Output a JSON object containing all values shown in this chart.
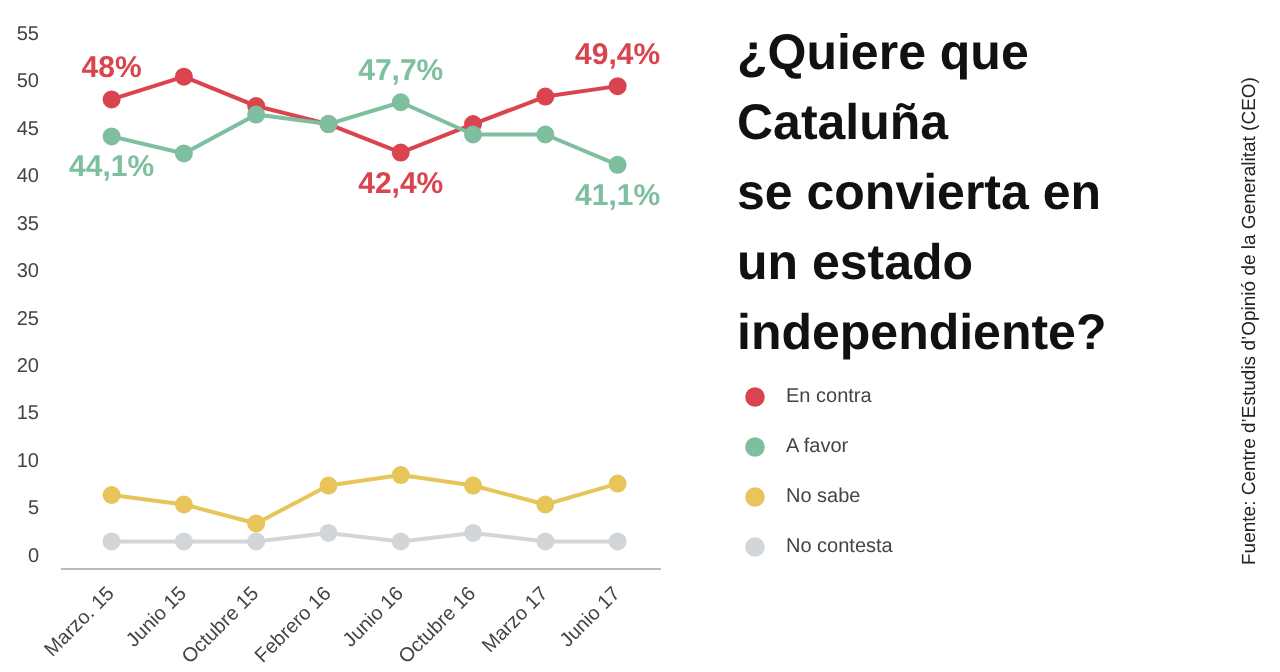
{
  "chart_data": {
    "type": "line",
    "title": "¿Quiere que\nCataluña\nse convierta en\nun estado\nindependiente?",
    "categories": [
      "Marzo. 15",
      "Junio 15",
      "Octubre 15",
      "Febrero 16",
      "Junio 16",
      "Octubre 16",
      "Marzo 17",
      "Junio 17"
    ],
    "series": [
      {
        "name": "En contra",
        "color": "#d9444e",
        "values": [
          48,
          50.4,
          47.3,
          45.4,
          42.4,
          45.4,
          48.3,
          49.4
        ],
        "value_labels": [
          "48%",
          null,
          null,
          null,
          "42,4%",
          null,
          null,
          "49,4%"
        ]
      },
      {
        "name": "A favor",
        "color": "#7dbf9e",
        "values": [
          44.1,
          42.3,
          46.4,
          45.4,
          47.7,
          44.3,
          44.3,
          41.1
        ],
        "value_labels": [
          "44,1%",
          null,
          null,
          null,
          "47,7%",
          null,
          null,
          "41,1%"
        ]
      },
      {
        "name": "No sabe",
        "color": "#e8c55a",
        "values": [
          6.3,
          5.3,
          3.3,
          7.3,
          8.4,
          7.3,
          5.3,
          7.5
        ]
      },
      {
        "name": "No contesta",
        "color": "#d3d6d9",
        "values": [
          1.4,
          1.4,
          1.4,
          2.3,
          1.4,
          2.3,
          1.4,
          1.4
        ]
      }
    ],
    "ylim": [
      -1.5,
      55
    ],
    "yticks": [
      0,
      5,
      10,
      15,
      20,
      25,
      30,
      35,
      40,
      45,
      50,
      55
    ],
    "grid": false,
    "legend": "right",
    "marker": "circle",
    "line_style": "solid",
    "annotations": [
      "Fuente: Centre d’Estudis d’Opinió de la Generalitat (CEO)"
    ]
  }
}
